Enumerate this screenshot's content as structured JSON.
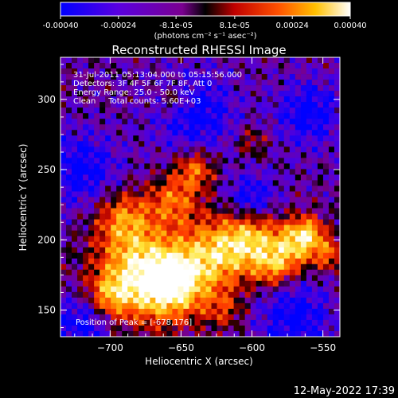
{
  "colorbar": {
    "tick_labels": [
      "-0.00040",
      "-0.00024",
      "-8.1e-05",
      "8.1e-05",
      "0.00024",
      "0.00040"
    ],
    "tick_values": [
      -0.0004,
      -0.00024,
      -8.1e-05,
      8.1e-05,
      0.00024,
      0.0004
    ],
    "range": [
      -0.0004,
      0.0004
    ],
    "units": "(photons cm⁻² s⁻¹ asec⁻²)",
    "colors": [
      "#0000ff",
      "#4b00ff",
      "#8000c0",
      "#000000",
      "#b00000",
      "#ff3000",
      "#ff9000",
      "#ffe000",
      "#ffffff"
    ]
  },
  "chart_data": {
    "type": "heatmap",
    "title": "Reconstructed RHESSI Image",
    "xlabel": "Heliocentric X (arcsec)",
    "ylabel": "Heliocentric Y (arcsec)",
    "xlim": [
      -735,
      -538
    ],
    "ylim": [
      131,
      330
    ],
    "x_ticks": [
      -700,
      -650,
      -600,
      -550
    ],
    "x_tick_labels": [
      "−700",
      "−650",
      "−600",
      "−550"
    ],
    "y_ticks": [
      150,
      200,
      250,
      300
    ],
    "y_tick_labels": [
      "150",
      "200",
      "250",
      "300"
    ],
    "annotations": [
      "31-Jul-2011 05:13:04.000 to 05:15:56.000",
      "Detectors: 3F 4F 5F 6F 7F 8F, Att 0",
      "Energy Range: 25.0 - 50.0 keV",
      "Clean     Total counts: 5.60E+03"
    ],
    "peak_label": "Position of Peak = [-678,176]",
    "peak_position": [
      -678,
      176
    ]
  },
  "footer_timestamp": "12-May-2022 17:39"
}
